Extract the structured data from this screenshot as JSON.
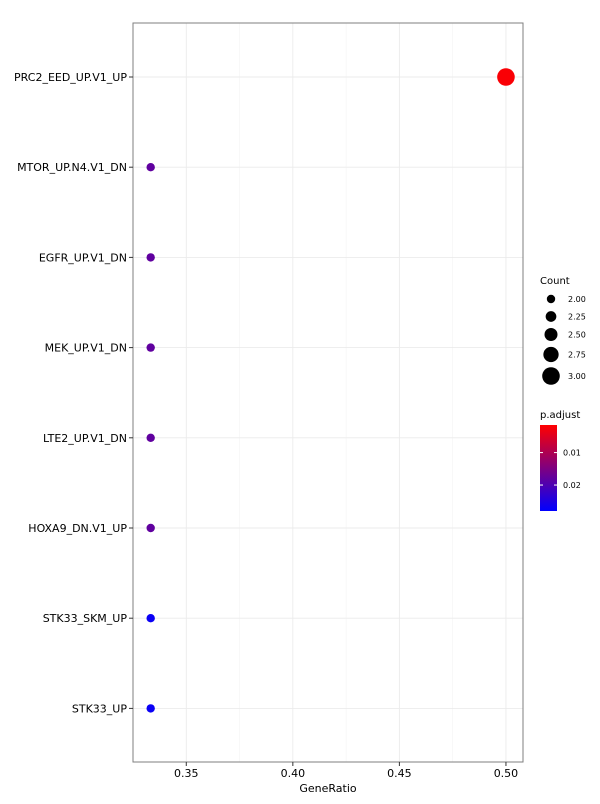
{
  "chart_data": {
    "type": "scatter",
    "xlabel": "GeneRatio",
    "ylabel": "",
    "xlim": [
      0.325,
      0.508
    ],
    "x_ticks": [
      0.35,
      0.4,
      0.45,
      0.5
    ],
    "x_tick_labels": [
      "0.35",
      "0.40",
      "0.45",
      "0.50"
    ],
    "categories": [
      "PRC2_EED_UP.V1_UP",
      "MTOR_UP.N4.V1_DN",
      "EGFR_UP.V1_DN",
      "MEK_UP.V1_DN",
      "LTE2_UP.V1_DN",
      "HOXA9_DN.V1_UP",
      "STK33_SKM_UP",
      "STK33_UP"
    ],
    "points": [
      {
        "category": "PRC2_EED_UP.V1_UP",
        "gene_ratio": 0.5,
        "count": 3,
        "p_adjust": 0.002
      },
      {
        "category": "MTOR_UP.N4.V1_DN",
        "gene_ratio": 0.3333,
        "count": 2,
        "p_adjust": 0.018
      },
      {
        "category": "EGFR_UP.V1_DN",
        "gene_ratio": 0.3333,
        "count": 2,
        "p_adjust": 0.018
      },
      {
        "category": "MEK_UP.V1_DN",
        "gene_ratio": 0.3333,
        "count": 2,
        "p_adjust": 0.018
      },
      {
        "category": "LTE2_UP.V1_DN",
        "gene_ratio": 0.3333,
        "count": 2,
        "p_adjust": 0.018
      },
      {
        "category": "HOXA9_DN.V1_UP",
        "gene_ratio": 0.3333,
        "count": 2,
        "p_adjust": 0.018
      },
      {
        "category": "STK33_SKM_UP",
        "gene_ratio": 0.3333,
        "count": 2,
        "p_adjust": 0.027
      },
      {
        "category": "STK33_UP",
        "gene_ratio": 0.3333,
        "count": 2,
        "p_adjust": 0.027
      }
    ],
    "legend_size": {
      "title": "Count",
      "values": [
        2.0,
        2.25,
        2.5,
        2.75,
        3.0
      ],
      "labels": [
        "2.00",
        "2.25",
        "2.50",
        "2.75",
        "3.00"
      ]
    },
    "legend_color": {
      "title": "p.adjust",
      "range": [
        0.0015,
        0.028
      ],
      "ticks": [
        0.01,
        0.02
      ],
      "tick_labels": [
        "0.01",
        "0.02"
      ],
      "low_color": "#ff0000",
      "high_color": "#0000ff"
    },
    "grid": true,
    "legend_position": "right",
    "colors": {
      "panel_border": "#7f7f7f",
      "grid": "#ebebeb"
    }
  }
}
